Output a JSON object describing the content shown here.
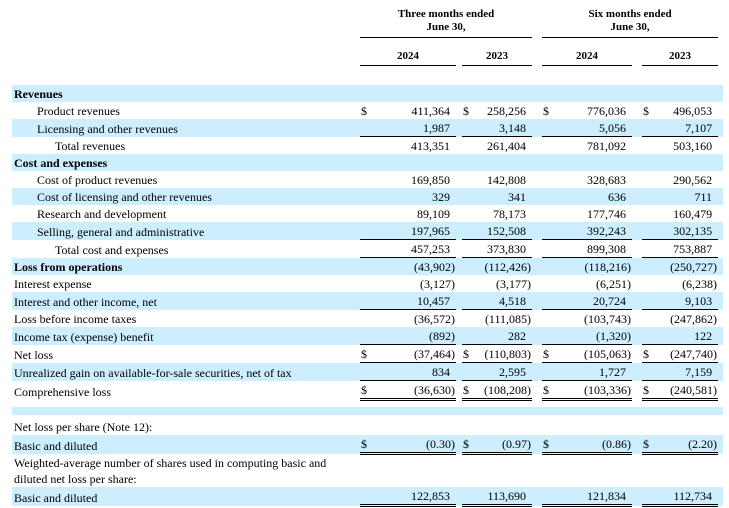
{
  "header": {
    "periods": [
      {
        "line1": "Three months ended",
        "line2": "June 30,"
      },
      {
        "line1": "Six months ended",
        "line2": "June 30,"
      }
    ],
    "years": [
      "2024",
      "2023",
      "2024",
      "2023"
    ]
  },
  "colors": {
    "highlight": "#cceeff",
    "border": "#000000",
    "text": "#000000"
  },
  "currency_symbol": "$",
  "rows": [
    {
      "label": "Revenues",
      "bold": true,
      "hl": true,
      "indent": 0,
      "dollar": false,
      "border": "none",
      "values": null
    },
    {
      "label": "Product revenues",
      "bold": false,
      "hl": false,
      "indent": 1,
      "dollar": true,
      "border": "none",
      "values": [
        "411,364",
        "258,256",
        "776,036",
        "496,053"
      ]
    },
    {
      "label": "Licensing and other revenues",
      "bold": false,
      "hl": true,
      "indent": 1,
      "dollar": false,
      "border": "single",
      "values": [
        "1,987",
        "3,148",
        "5,056",
        "7,107"
      ]
    },
    {
      "label": "Total revenues",
      "bold": false,
      "hl": false,
      "indent": 2,
      "dollar": false,
      "border": "none",
      "values": [
        "413,351",
        "261,404",
        "781,092",
        "503,160"
      ]
    },
    {
      "label": "Cost and expenses",
      "bold": true,
      "hl": true,
      "indent": 0,
      "dollar": false,
      "border": "none",
      "values": null
    },
    {
      "label": "Cost of product revenues",
      "bold": false,
      "hl": false,
      "indent": 1,
      "dollar": false,
      "border": "none",
      "values": [
        "169,850",
        "142,808",
        "328,683",
        "290,562"
      ]
    },
    {
      "label": "Cost of licensing and other revenues",
      "bold": false,
      "hl": true,
      "indent": 1,
      "dollar": false,
      "border": "none",
      "values": [
        "329",
        "341",
        "636",
        "711"
      ]
    },
    {
      "label": "Research and development",
      "bold": false,
      "hl": false,
      "indent": 1,
      "dollar": false,
      "border": "none",
      "values": [
        "89,109",
        "78,173",
        "177,746",
        "160,479"
      ]
    },
    {
      "label": "Selling, general and administrative",
      "bold": false,
      "hl": true,
      "indent": 1,
      "dollar": false,
      "border": "single",
      "values": [
        "197,965",
        "152,508",
        "392,243",
        "302,135"
      ]
    },
    {
      "label": "Total cost and expenses",
      "bold": false,
      "hl": false,
      "indent": 2,
      "dollar": false,
      "border": "single",
      "values": [
        "457,253",
        "373,830",
        "899,308",
        "753,887"
      ]
    },
    {
      "label": "Loss from operations",
      "bold": true,
      "hl": true,
      "indent": 0,
      "dollar": false,
      "border": "none",
      "values": [
        "(43,902)",
        "(112,426)",
        "(118,216)",
        "(250,727)"
      ]
    },
    {
      "label": "Interest expense",
      "bold": false,
      "hl": false,
      "indent": 0,
      "dollar": false,
      "border": "none",
      "values": [
        "(3,127)",
        "(3,177)",
        "(6,251)",
        "(6,238)"
      ]
    },
    {
      "label": "Interest and other income, net",
      "bold": false,
      "hl": true,
      "indent": 0,
      "dollar": false,
      "border": "single",
      "values": [
        "10,457",
        "4,518",
        "20,724",
        "9,103"
      ]
    },
    {
      "label": "Loss before income taxes",
      "bold": false,
      "hl": false,
      "indent": 0,
      "dollar": false,
      "border": "none",
      "values": [
        "(36,572)",
        "(111,085)",
        "(103,743)",
        "(247,862)"
      ]
    },
    {
      "label": "Income tax (expense) benefit",
      "bold": false,
      "hl": true,
      "indent": 0,
      "dollar": false,
      "border": "single",
      "values": [
        "(892)",
        "282",
        "(1,320)",
        "122"
      ]
    },
    {
      "label": "Net loss",
      "bold": false,
      "hl": false,
      "indent": 0,
      "dollar": true,
      "border": "single",
      "values": [
        "(37,464)",
        "(110,803)",
        "(105,063)",
        "(247,740)"
      ]
    },
    {
      "label": "Unrealized gain on available-for-sale securities, net of tax",
      "bold": false,
      "hl": true,
      "indent": 0,
      "dollar": false,
      "border": "single",
      "values": [
        "834",
        "2,595",
        "1,727",
        "7,159"
      ]
    },
    {
      "label": "Comprehensive loss",
      "bold": false,
      "hl": false,
      "indent": 0,
      "dollar": true,
      "border": "double",
      "values": [
        "(36,630)",
        "(108,208)",
        "(103,336)",
        "(240,581)"
      ]
    },
    {
      "spacer": true,
      "hl": false,
      "height": 6
    },
    {
      "spacer": true,
      "hl": true,
      "height": 8
    },
    {
      "spacer": true,
      "hl": false,
      "height": 3
    },
    {
      "label": "Net loss per share (Note 12):",
      "bold": false,
      "hl": false,
      "indent": 0,
      "dollar": false,
      "border": "none",
      "values": null
    },
    {
      "label": "Basic and diluted",
      "bold": false,
      "hl": true,
      "indent": 0,
      "dollar": true,
      "border": "double",
      "values": [
        "(0.30)",
        "(0.97)",
        "(0.86)",
        "(2.20)"
      ]
    },
    {
      "label": "Weighted-average number of shares used in computing basic and diluted net loss per share:",
      "bold": false,
      "hl": false,
      "indent": 0,
      "dollar": false,
      "border": "none",
      "values": null,
      "wrap": true
    },
    {
      "label": "Basic and diluted",
      "bold": false,
      "hl": true,
      "indent": 0,
      "dollar": false,
      "border": "double",
      "values": [
        "122,853",
        "113,690",
        "121,834",
        "112,734"
      ]
    }
  ]
}
